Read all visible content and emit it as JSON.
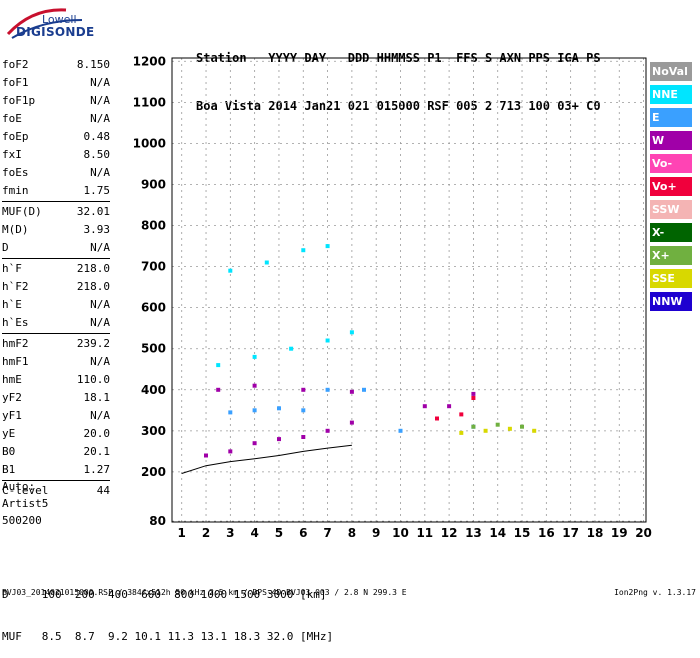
{
  "logo": {
    "line1": "Lowell",
    "line2": "DIGISONDE"
  },
  "header": {
    "row1": "Station   YYYY DAY   DDD HHMMSS P1  FFS S AXN PPS IGA PS",
    "row2": "Boa Vista 2014 Jan21 021 015000 RSF 005 2 713 100 03+ C0"
  },
  "params": [
    {
      "label": "foF2",
      "value": "8.150"
    },
    {
      "label": "foF1",
      "value": "N/A"
    },
    {
      "label": "foF1p",
      "value": "N/A"
    },
    {
      "label": "foE",
      "value": "N/A"
    },
    {
      "label": "foEp",
      "value": "0.48"
    },
    {
      "label": "fxI",
      "value": "8.50"
    },
    {
      "label": "foEs",
      "value": "N/A"
    },
    {
      "label": "fmin",
      "value": "1.75"
    },
    {
      "sep": true
    },
    {
      "label": "MUF(D)",
      "value": "32.01"
    },
    {
      "label": "M(D)",
      "value": "3.93"
    },
    {
      "label": "D",
      "value": "N/A"
    },
    {
      "sep": true
    },
    {
      "label": "h`F",
      "value": "218.0"
    },
    {
      "label": "h`F2",
      "value": "218.0"
    },
    {
      "label": "h`E",
      "value": "N/A"
    },
    {
      "label": "h`Es",
      "value": "N/A"
    },
    {
      "sep": true
    },
    {
      "label": "hmF2",
      "value": "239.2"
    },
    {
      "label": "hmF1",
      "value": "N/A"
    },
    {
      "label": "hmE",
      "value": "110.0"
    },
    {
      "label": "yF2",
      "value": "18.1"
    },
    {
      "label": "yF1",
      "value": "N/A"
    },
    {
      "label": "yE",
      "value": "20.0"
    },
    {
      "label": "B0",
      "value": "20.1"
    },
    {
      "label": "B1",
      "value": "1.27"
    },
    {
      "sep": true
    },
    {
      "label": "C-level",
      "value": "44"
    }
  ],
  "auto": {
    "line1": "Auto:",
    "line2": "Artist5",
    "line3": "500200"
  },
  "legend": [
    {
      "label": "NoVal",
      "color": "#9a9a9a"
    },
    {
      "label": "NNE",
      "color": "#00e5ff"
    },
    {
      "label": "E",
      "color": "#3aa0ff"
    },
    {
      "label": "W",
      "color": "#a000a8"
    },
    {
      "label": "Vo-",
      "color": "#ff44b4"
    },
    {
      "label": "Vo+",
      "color": "#f0003c"
    },
    {
      "label": "SSW",
      "color": "#f4b4b4"
    },
    {
      "label": "X-",
      "color": "#006400"
    },
    {
      "label": "X+",
      "color": "#70b040"
    },
    {
      "label": "SSE",
      "color": "#d8d800"
    },
    {
      "label": "NNW",
      "color": "#1e00d0"
    }
  ],
  "footer": {
    "d_row": "D     100  200  400  600  800 1000 1500 3000 [km]",
    "muf_row": "MUF   8.5  8.7  9.2 10.1 11.3 13.1 18.3 32.0 [MHz]",
    "file_line": "BVJ03_2014021015000.RSF / 384fx512h 50 kHz 2.5 km / DPS-4D BVJ03 003 / 2.8 N 299.3 E",
    "version": "Ion2Png v. 1.3.17"
  },
  "chart_data": {
    "type": "scatter",
    "xlabel": "",
    "ylabel": "",
    "xlim": [
      0.6,
      20.1
    ],
    "ylim": [
      78,
      1208
    ],
    "x_ticks": [
      1,
      2,
      3,
      4,
      5,
      6,
      7,
      8,
      9,
      10,
      11,
      12,
      13,
      14,
      15,
      16,
      17,
      18,
      19,
      20
    ],
    "y_ticks": [
      80,
      200,
      300,
      400,
      500,
      600,
      700,
      800,
      900,
      1000,
      1100,
      1200
    ],
    "grid": "dashed",
    "series": [
      {
        "legend": "W",
        "points": [
          [
            2.0,
            240
          ],
          [
            3.0,
            250
          ],
          [
            4.0,
            270
          ],
          [
            5.0,
            280
          ],
          [
            6.0,
            285
          ],
          [
            7.0,
            300
          ],
          [
            8.0,
            320
          ],
          [
            2.5,
            400
          ],
          [
            4.0,
            410
          ],
          [
            6.0,
            400
          ],
          [
            8.0,
            395
          ],
          [
            11.0,
            360
          ],
          [
            12.0,
            360
          ],
          [
            13.0,
            390
          ]
        ]
      },
      {
        "legend": "NNE",
        "points": [
          [
            2.5,
            460
          ],
          [
            4.0,
            480
          ],
          [
            5.5,
            500
          ],
          [
            7.0,
            520
          ],
          [
            8.0,
            540
          ],
          [
            3.0,
            690
          ],
          [
            4.5,
            710
          ],
          [
            6.0,
            740
          ],
          [
            7.0,
            750
          ]
        ]
      },
      {
        "legend": "E",
        "points": [
          [
            3.0,
            345
          ],
          [
            4.0,
            350
          ],
          [
            5.0,
            355
          ],
          [
            6.0,
            350
          ],
          [
            7.0,
            400
          ],
          [
            8.5,
            400
          ],
          [
            10.0,
            300
          ],
          [
            13.0,
            310
          ]
        ]
      },
      {
        "legend": "SSE",
        "points": [
          [
            12.5,
            295
          ],
          [
            13.5,
            300
          ],
          [
            14.5,
            305
          ],
          [
            15.5,
            300
          ]
        ]
      },
      {
        "legend": "X+",
        "points": [
          [
            13.0,
            310
          ],
          [
            14.0,
            315
          ],
          [
            15.0,
            310
          ]
        ]
      },
      {
        "legend": "Vo+",
        "points": [
          [
            11.5,
            330
          ],
          [
            12.5,
            340
          ],
          [
            13.0,
            380
          ]
        ]
      }
    ],
    "lines": [
      {
        "name": "virtual height trace",
        "x": [
          1.0,
          2.0,
          3.0,
          4.0,
          5.0,
          6.0,
          7.0,
          8.0
        ],
        "y": [
          196,
          215,
          225,
          232,
          240,
          250,
          258,
          265
        ]
      }
    ]
  }
}
